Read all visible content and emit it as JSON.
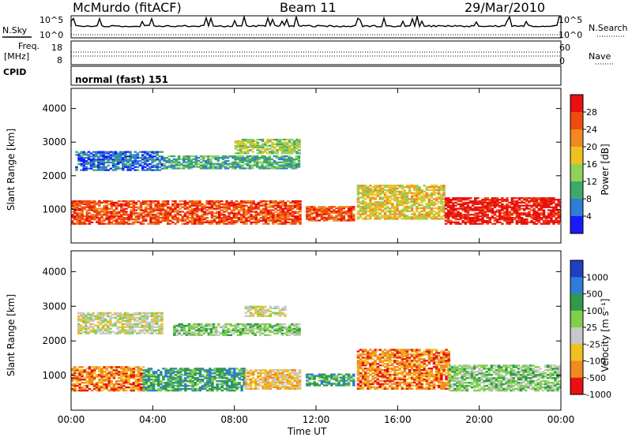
{
  "header": {
    "radar": "McMurdo (fitACF)",
    "beam": "Beam 11",
    "date": "29/Mar/2010"
  },
  "status_panels": {
    "nsky_label": "N.Sky",
    "nsky_ticks": [
      "10^5",
      "10^0"
    ],
    "nsearch_label": "N.Search",
    "nsearch_ticks": [
      "10^5",
      "10^0"
    ],
    "freq_label_line1": "Freq.",
    "freq_label_line2": "[MHz]",
    "freq_ticks": [
      "18",
      "8"
    ],
    "nave_label": "Nave",
    "nave_ticks": [
      "60",
      "0"
    ],
    "cpid_label": "CPID",
    "cpid_value": "normal (fast) 151"
  },
  "chart_data": [
    {
      "type": "heatmap",
      "name": "power",
      "ylabel": "Slant Range [km]",
      "yticks": [
        1000,
        2000,
        3000,
        4000
      ],
      "ylim": [
        0,
        4600
      ],
      "xlim": [
        0,
        24
      ],
      "xticks": [
        "00:00",
        "04:00",
        "08:00",
        "12:00",
        "16:00",
        "20:00",
        "00:00"
      ],
      "colorbar_label": "Power [dB]",
      "colorbar_ticks": [
        "4",
        "8",
        "12",
        "16",
        "20",
        "24",
        "28"
      ],
      "colors": [
        "#1a1aff",
        "#2e7dd6",
        "#3fa86a",
        "#8fd25a",
        "#f0c020",
        "#f08a1e",
        "#f04a10",
        "#e81010"
      ],
      "regions": [
        {
          "t0": 0.0,
          "t1": 11.2,
          "r0": 550,
          "r1": 1250,
          "level": 6
        },
        {
          "t0": 11.5,
          "t1": 13.8,
          "r0": 650,
          "r1": 1100,
          "level": 6
        },
        {
          "t0": 14.0,
          "t1": 18.3,
          "r0": 700,
          "r1": 1700,
          "level": 4
        },
        {
          "t0": 18.3,
          "t1": 24.0,
          "r0": 550,
          "r1": 1350,
          "level": 7
        },
        {
          "t0": 0.2,
          "t1": 4.5,
          "r0": 2150,
          "r1": 2700,
          "level": 1
        },
        {
          "t0": 4.5,
          "t1": 11.2,
          "r0": 2200,
          "r1": 2600,
          "level": 2
        },
        {
          "t0": 8.0,
          "t1": 11.2,
          "r0": 2650,
          "r1": 3100,
          "level": 3
        }
      ]
    },
    {
      "type": "heatmap",
      "name": "velocity",
      "ylabel": "Slant Range [km]",
      "yticks": [
        1000,
        2000,
        3000,
        4000
      ],
      "ylim": [
        0,
        4600
      ],
      "xlim": [
        0,
        24
      ],
      "xticks": [
        "00:00",
        "04:00",
        "08:00",
        "12:00",
        "16:00",
        "20:00",
        "00:00"
      ],
      "xlabel": "Time UT",
      "colorbar_label": "Velocity [m s⁻¹]",
      "colorbar_ticks": [
        "1000",
        "500",
        "100",
        "25",
        "-25",
        "-100",
        "-500",
        "-1000"
      ],
      "colors": [
        "#2040c0",
        "#2e7dd6",
        "#2f9a4a",
        "#7fcf4a",
        "#c8c8c8",
        "#f0c020",
        "#f08a1e",
        "#e81010"
      ],
      "regions": [
        {
          "t0": 0.0,
          "t1": 3.5,
          "r0": 550,
          "r1": 1250,
          "level": 6
        },
        {
          "t0": 3.5,
          "t1": 8.5,
          "r0": 550,
          "r1": 1200,
          "level": 2
        },
        {
          "t0": 8.5,
          "t1": 11.2,
          "r0": 600,
          "r1": 1150,
          "level": 5
        },
        {
          "t0": 11.5,
          "t1": 13.8,
          "r0": 700,
          "r1": 1050,
          "level": 2
        },
        {
          "t0": 14.0,
          "t1": 18.5,
          "r0": 600,
          "r1": 1750,
          "level": 6
        },
        {
          "t0": 18.5,
          "t1": 24.0,
          "r0": 550,
          "r1": 1300,
          "level": 3
        },
        {
          "t0": 0.3,
          "t1": 4.5,
          "r0": 2200,
          "r1": 2800,
          "level": 4
        },
        {
          "t0": 5.0,
          "t1": 11.2,
          "r0": 2150,
          "r1": 2500,
          "level": 3
        },
        {
          "t0": 8.5,
          "t1": 10.5,
          "r0": 2700,
          "r1": 3000,
          "level": 4
        }
      ]
    }
  ]
}
